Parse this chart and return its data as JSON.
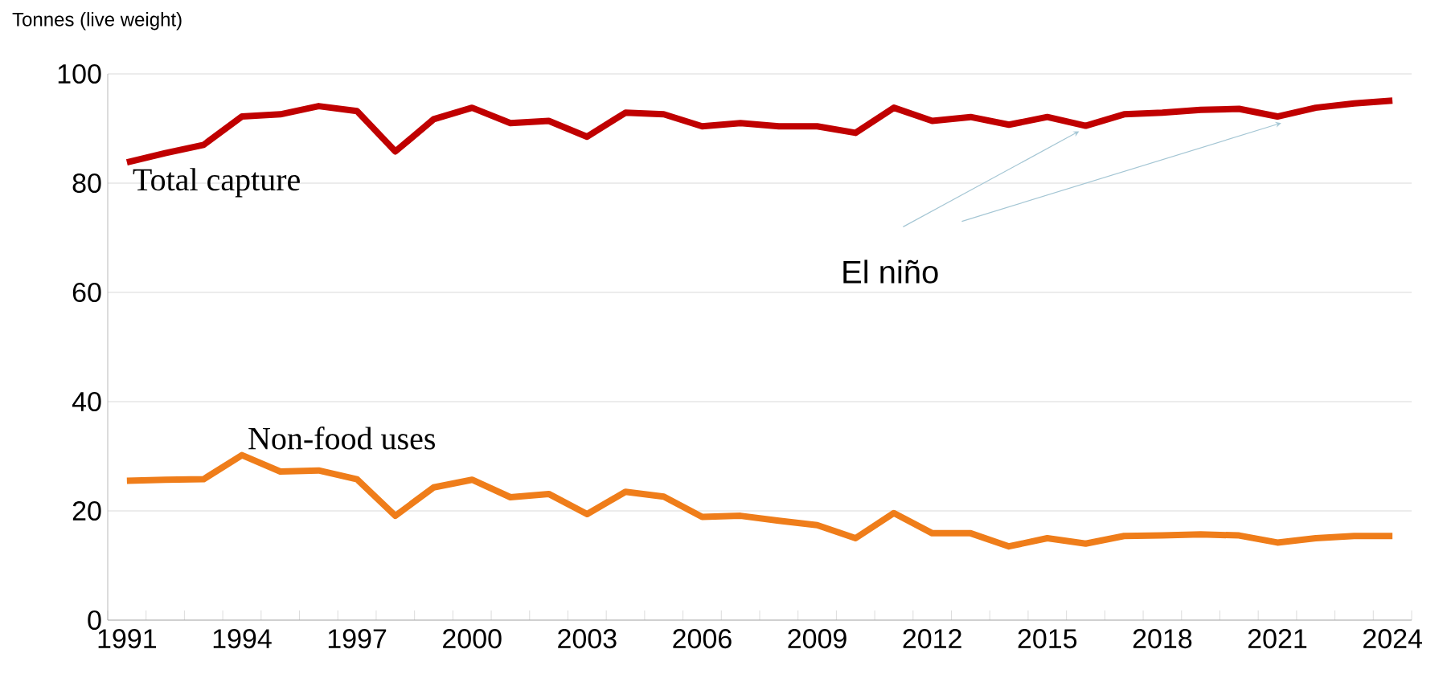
{
  "chart_data": {
    "type": "line",
    "ylabel": "Tonnes (live weight)",
    "categories": [
      "1991",
      null,
      null,
      "1994",
      null,
      null,
      "1997",
      null,
      null,
      "2000",
      null,
      null,
      "2003",
      null,
      null,
      "2006",
      null,
      null,
      "2009",
      null,
      null,
      "2012",
      null,
      null,
      "2015",
      null,
      null,
      "2018",
      null,
      null,
      "2021",
      null,
      null,
      "2024"
    ],
    "series": [
      {
        "name": "Total capture",
        "color": "#c00000",
        "values": [
          83.8,
          85.5,
          87.0,
          92.2,
          92.6,
          94.1,
          93.2,
          85.8,
          91.7,
          93.8,
          91.0,
          91.4,
          88.5,
          92.9,
          92.6,
          90.4,
          91.0,
          90.4,
          90.4,
          89.2,
          93.8,
          91.4,
          92.1,
          90.7,
          92.1,
          90.5,
          92.6,
          92.9,
          93.4,
          93.6,
          92.2,
          93.8,
          94.6,
          95.1
        ]
      },
      {
        "name": "Non-food uses",
        "color": "#ef7d1a",
        "values": [
          25.5,
          25.7,
          25.8,
          30.2,
          27.2,
          27.4,
          25.8,
          19.1,
          24.3,
          25.7,
          22.5,
          23.1,
          19.4,
          23.5,
          22.6,
          18.9,
          19.1,
          18.2,
          17.4,
          15.0,
          19.6,
          15.9,
          15.9,
          13.5,
          15.0,
          14.0,
          15.4,
          15.5,
          15.7,
          15.5,
          14.2,
          15.0,
          15.4,
          15.4
        ]
      }
    ],
    "annotations": [
      "El niño"
    ],
    "ylim": [
      0,
      100
    ],
    "yticks": [
      0,
      20,
      40,
      60,
      80,
      100
    ],
    "grid": "y",
    "marker": "none",
    "line_style": "solid"
  }
}
